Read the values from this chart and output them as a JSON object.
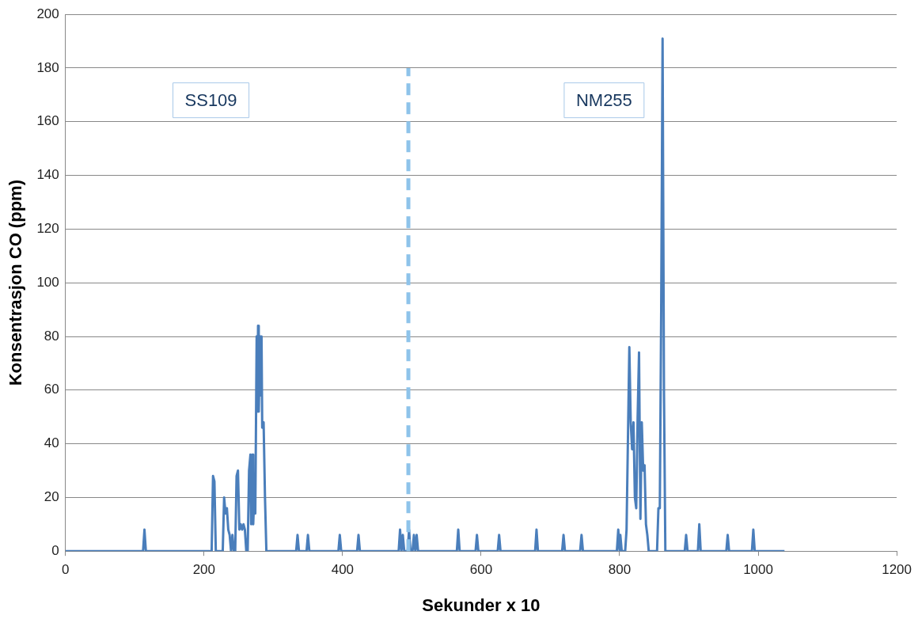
{
  "chart_data": {
    "type": "line",
    "xlabel": "Sekunder x 10",
    "ylabel": "Konsentrasjon CO (ppm)",
    "xlim": [
      0,
      1200
    ],
    "xticks": [
      0,
      200,
      400,
      600,
      800,
      1000,
      1200
    ],
    "ylim": [
      0,
      200
    ],
    "yticks": [
      0,
      20,
      40,
      60,
      80,
      100,
      120,
      140,
      160,
      180,
      200
    ],
    "grid": "y",
    "legend": false,
    "marker": "none",
    "line_style": "solid",
    "ref_lines": [
      {
        "axis": "x",
        "value": 495,
        "label": null,
        "color": "#8ec3ea",
        "line_style": "dashed"
      }
    ],
    "annotations": [
      "SS109",
      "NM255"
    ],
    "series": [
      {
        "color": "#4a7ebb",
        "x": [
          0,
          112,
          114,
          116,
          211,
          213,
          215,
          217,
          227,
          229,
          231,
          233,
          235,
          237,
          239,
          241,
          243,
          245,
          247,
          249,
          251,
          253,
          255,
          257,
          259,
          261,
          263,
          265,
          267,
          268,
          270,
          271,
          273,
          274,
          276,
          277,
          278,
          279,
          281,
          282,
          283,
          284,
          286,
          288,
          290,
          333,
          335,
          337,
          348,
          350,
          352,
          394,
          396,
          398,
          421,
          423,
          425,
          481,
          483,
          485,
          487,
          489,
          494,
          496,
          498,
          501,
          503,
          505,
          507,
          509,
          565,
          567,
          569,
          592,
          594,
          596,
          624,
          626,
          628,
          678,
          680,
          682,
          717,
          719,
          721,
          743,
          745,
          747,
          796,
          798,
          800,
          801,
          803,
          808,
          810,
          814,
          816,
          818,
          820,
          822,
          824,
          826,
          828,
          830,
          832,
          834,
          836,
          838,
          840,
          842,
          846,
          854,
          856,
          858,
          860,
          862,
          864,
          866,
          894,
          896,
          898,
          913,
          915,
          917,
          954,
          956,
          958,
          991,
          993,
          995,
          1038
        ],
        "values": [
          0,
          0,
          8,
          0,
          0,
          28,
          26,
          0,
          0,
          20,
          14,
          16,
          8,
          6,
          0,
          6,
          0,
          0,
          28,
          30,
          8,
          10,
          8,
          10,
          8,
          0,
          0,
          30,
          36,
          10,
          36,
          10,
          24,
          14,
          80,
          52,
          84,
          52,
          80,
          58,
          80,
          46,
          48,
          20,
          0,
          0,
          6,
          0,
          0,
          6,
          0,
          0,
          6,
          0,
          0,
          6,
          0,
          0,
          8,
          0,
          6,
          0,
          0,
          8,
          0,
          0,
          6,
          0,
          6,
          0,
          0,
          8,
          0,
          0,
          6,
          0,
          0,
          6,
          0,
          0,
          8,
          0,
          0,
          6,
          0,
          0,
          6,
          0,
          0,
          8,
          0,
          6,
          0,
          0,
          8,
          76,
          48,
          38,
          48,
          20,
          16,
          50,
          74,
          12,
          48,
          30,
          32,
          10,
          6,
          0,
          0,
          0,
          16,
          16,
          90,
          191,
          60,
          0,
          0,
          6,
          0,
          0,
          10,
          0,
          0,
          6,
          0,
          0,
          8,
          0,
          0
        ]
      }
    ]
  }
}
